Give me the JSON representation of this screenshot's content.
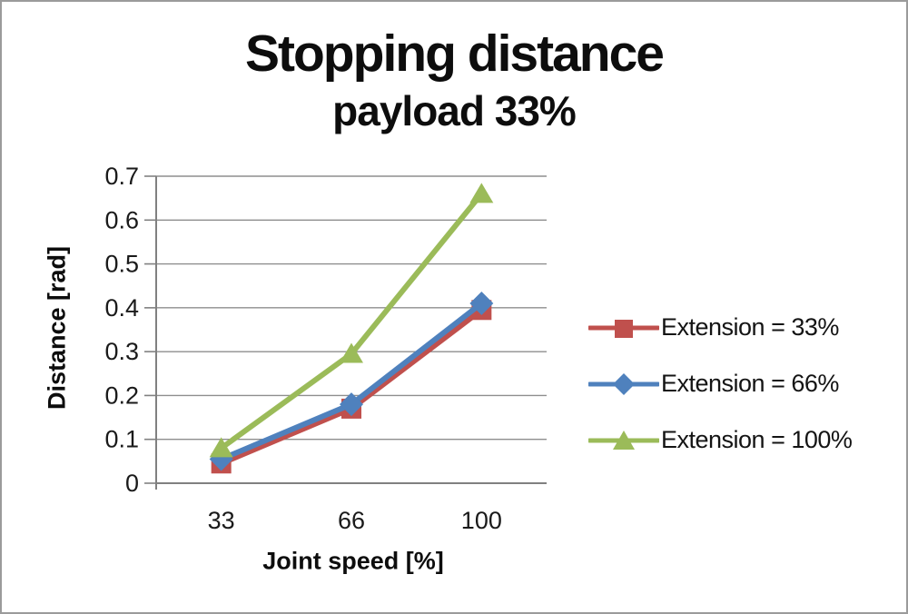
{
  "page": {
    "background_color": "#ffffff",
    "border_color": "#9b9b9b"
  },
  "chart_data": {
    "type": "line",
    "title": "Stopping distance",
    "subtitle": "payload 33%",
    "xlabel": "Joint speed [%]",
    "ylabel": "Distance [rad]",
    "categories": [
      "33",
      "66",
      "100"
    ],
    "x_values": [
      33,
      66,
      100
    ],
    "ylim": [
      0,
      0.7
    ],
    "y_tick_step": 0.1,
    "y_tick_labels": [
      "0",
      "0.1",
      "0.2",
      "0.3",
      "0.4",
      "0.5",
      "0.6",
      "0.7"
    ],
    "grid": "horizontal",
    "legend_position": "right",
    "axis_color": "#808080",
    "gridline_color": "#8e8e8e",
    "tick_label_color": "#1a1a1a",
    "series": [
      {
        "name": "Extension = 33%",
        "color": "#C0504D",
        "marker": "square",
        "values": [
          0.045,
          0.17,
          0.395
        ]
      },
      {
        "name": "Extension = 66%",
        "color": "#4F81BD",
        "marker": "diamond",
        "values": [
          0.055,
          0.18,
          0.41
        ]
      },
      {
        "name": "Extension = 100%",
        "color": "#9BBB59",
        "marker": "triangle",
        "values": [
          0.08,
          0.295,
          0.66
        ]
      }
    ]
  }
}
